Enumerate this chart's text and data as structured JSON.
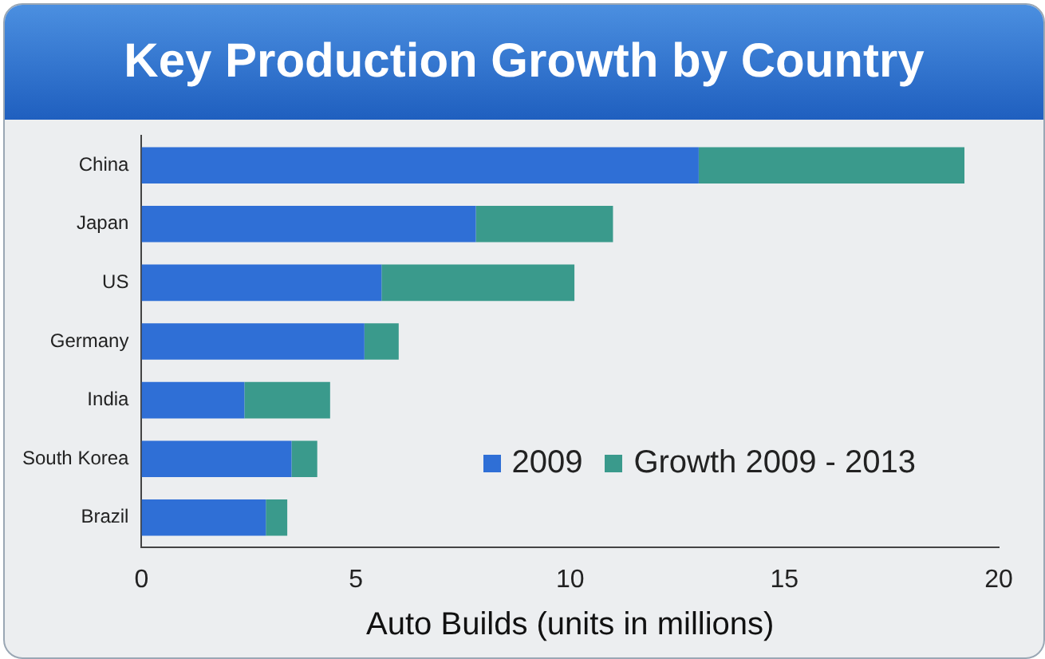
{
  "chart_data": {
    "type": "bar",
    "title": "Key Production Growth by Country",
    "xlabel": "Auto Builds (units in millions)",
    "orientation": "horizontal",
    "stacked": true,
    "categories": [
      "China",
      "Japan",
      "US",
      "Germany",
      "India",
      "South Korea",
      "Brazil"
    ],
    "series": [
      {
        "name": "2009",
        "color": "#2f6fd6",
        "values": [
          13.0,
          7.8,
          5.6,
          5.2,
          2.4,
          3.5,
          2.9
        ]
      },
      {
        "name": "Growth 2009 - 2013",
        "color": "#3a9a8c",
        "values": [
          6.2,
          3.2,
          4.5,
          0.8,
          2.0,
          0.6,
          0.5
        ]
      }
    ],
    "xlim": [
      0,
      20
    ],
    "xticks": [
      0,
      5,
      10,
      15,
      20
    ],
    "grid": false,
    "legend": "bottom right"
  }
}
